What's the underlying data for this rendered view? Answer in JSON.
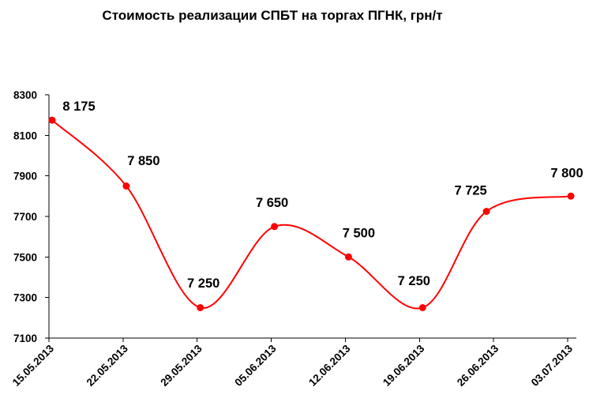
{
  "chart_data": {
    "type": "line",
    "title": "Стоимость реализации СПБТ на торгах ПГНК, грн/т",
    "categories": [
      "15.05.2013",
      "22.05.2013",
      "29.05.2013",
      "05.06.2013",
      "12.06.2013",
      "19.06.2013",
      "26.06.2013",
      "03.07.2013"
    ],
    "series": [
      {
        "values": [
          8175,
          7850,
          7250,
          7650,
          7500,
          7250,
          7725,
          7800
        ],
        "labels": [
          "8 175",
          "7 850",
          "7 250",
          "7 650",
          "7 500",
          "7 250",
          "7 725",
          "7 800"
        ],
        "color": "#FF0000",
        "smooth": true,
        "marker": "circle"
      }
    ],
    "yticks": [
      8300,
      8100,
      7900,
      7700,
      7500,
      7300,
      7100
    ],
    "ylim": [
      7100,
      8300
    ],
    "grid": false,
    "legend": false
  }
}
